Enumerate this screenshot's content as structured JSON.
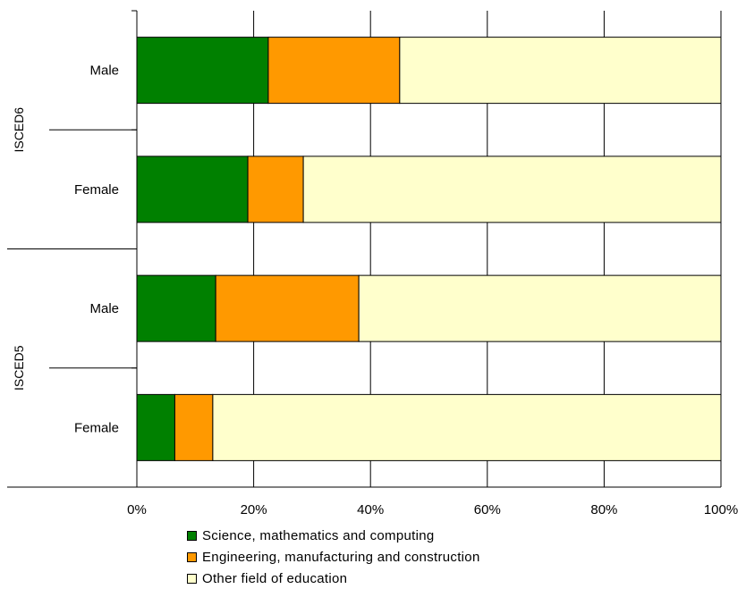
{
  "chart_data": {
    "type": "bar",
    "orientation": "horizontal",
    "stacked": "percent",
    "groups": [
      {
        "label": "ISCED6",
        "categories": [
          "Male",
          "Female"
        ]
      },
      {
        "label": "ISCED5",
        "categories": [
          "Male",
          "Female"
        ]
      }
    ],
    "categories": [
      "ISCED6 Male",
      "ISCED6 Female",
      "ISCED5 Male",
      "ISCED5 Female"
    ],
    "category_labels": [
      "Male",
      "Female",
      "Male",
      "Female"
    ],
    "series": [
      {
        "name": "Science, mathematics and computing",
        "color": "#008000",
        "values": [
          22.5,
          19,
          13.5,
          6.5
        ]
      },
      {
        "name": "Engineering, manufacturing and construction",
        "color": "#FF9900",
        "values": [
          22.5,
          9.5,
          24.5,
          6.5
        ]
      },
      {
        "name": "Other field of education",
        "color": "#FFFFCC",
        "values": [
          55,
          71.5,
          62,
          87
        ]
      }
    ],
    "xlim": [
      0,
      100
    ],
    "xticks": [
      "0%",
      "20%",
      "40%",
      "60%",
      "80%",
      "100%"
    ],
    "grid": true,
    "legend_position": "bottom",
    "title": "",
    "xlabel": "",
    "ylabel": ""
  }
}
